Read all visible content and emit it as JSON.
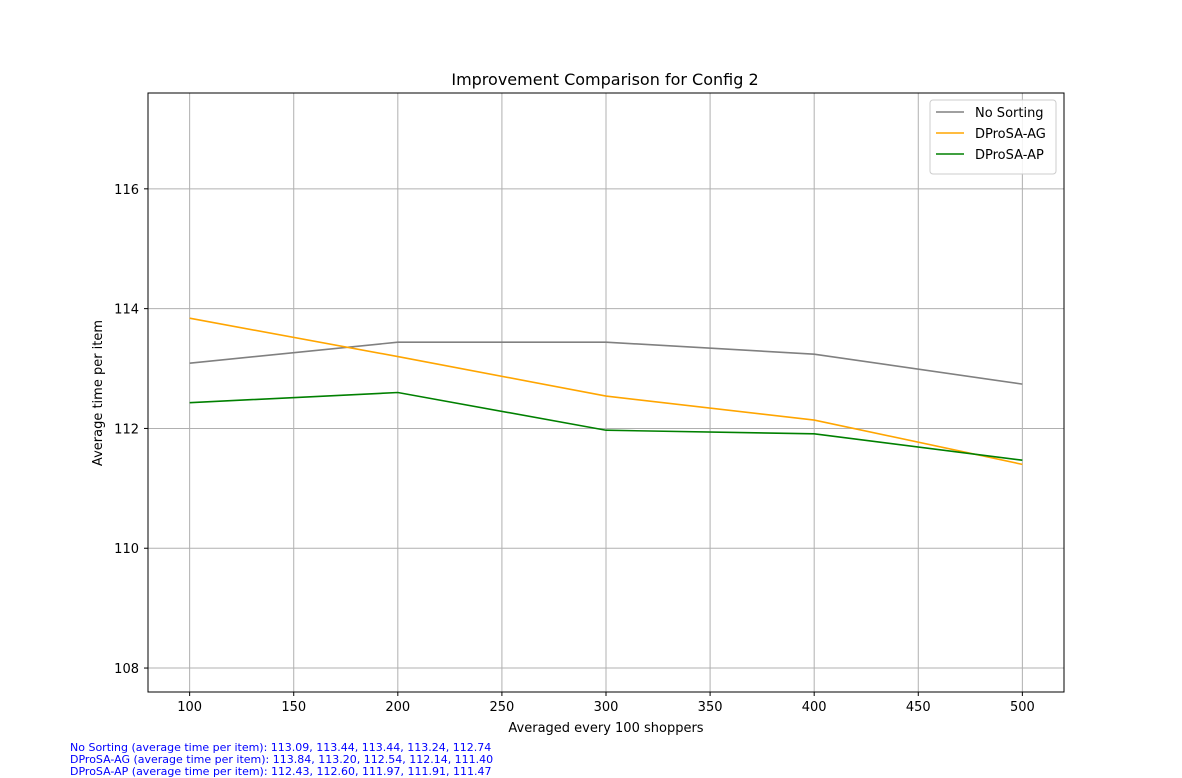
{
  "chart_data": {
    "type": "line",
    "title": "Improvement Comparison for Config 2",
    "xlabel": "Averaged every 100 shoppers",
    "ylabel": "Average time per item",
    "x": [
      100,
      200,
      300,
      400,
      500
    ],
    "xlim": [
      80,
      520
    ],
    "ylim": [
      107.6,
      117.6
    ],
    "xticks": [
      100,
      150,
      200,
      250,
      300,
      350,
      400,
      450,
      500
    ],
    "yticks": [
      108,
      110,
      112,
      114,
      116
    ],
    "grid": true,
    "legend_position": "top-right",
    "series": [
      {
        "name": "No Sorting",
        "color": "#808080",
        "values": [
          113.09,
          113.44,
          113.44,
          113.24,
          112.74
        ]
      },
      {
        "name": "DProSA-AG",
        "color": "#ffa500",
        "values": [
          113.84,
          113.2,
          112.54,
          112.14,
          111.4
        ]
      },
      {
        "name": "DProSA-AP",
        "color": "#008000",
        "values": [
          112.43,
          112.6,
          111.97,
          111.91,
          111.47
        ]
      }
    ]
  },
  "footnotes": [
    "No Sorting (average time per item): 113.09, 113.44, 113.44, 113.24, 112.74",
    "DProSA-AG (average time per item): 113.84, 113.20, 112.54, 112.14, 111.40",
    "DProSA-AP (average time per item): 112.43, 112.60, 111.97, 111.91, 111.47"
  ]
}
